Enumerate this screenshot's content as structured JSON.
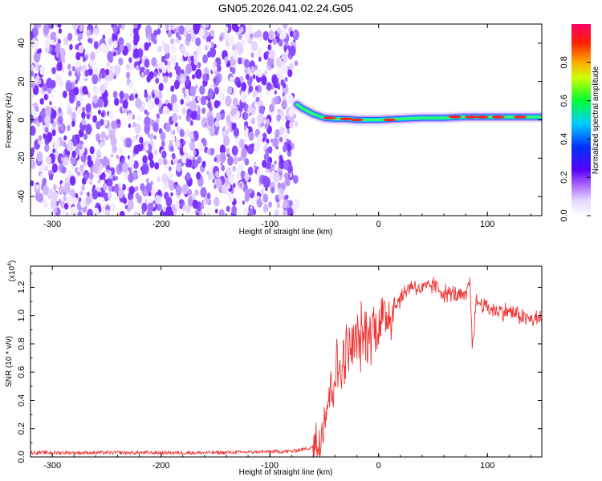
{
  "title": "GN05.2026.041.02.24.G05",
  "chart_data": [
    {
      "type": "heatmap",
      "xlabel": "Height of straight line (km)",
      "ylabel": "Frequency (Hz)",
      "xlim": [
        -320,
        150
      ],
      "ylim": [
        -50,
        50
      ],
      "xticks": [
        -300,
        -200,
        -100,
        0,
        100
      ],
      "yticks": [
        -40,
        -20,
        0,
        20,
        40
      ],
      "noise_region_x": [
        -320,
        -75
      ],
      "signal_trace": {
        "x": [
          -75,
          -70,
          -60,
          -50,
          -40,
          -30,
          -20,
          -10,
          0,
          20,
          40,
          60,
          80,
          100,
          120,
          150
        ],
        "y": [
          8,
          6,
          3,
          1,
          0.5,
          0.5,
          0,
          0,
          0,
          0.5,
          1,
          1,
          1.5,
          1.5,
          1.5,
          1.5
        ]
      },
      "colorbar": {
        "label": "Normalized spectral amplitude",
        "range": [
          0,
          1
        ],
        "ticks": [
          "0.0",
          "0.2",
          "0.4",
          "0.6",
          "0.8"
        ],
        "colors": [
          "#ffffff",
          "#cc99ff",
          "#8800ff",
          "#0000ff",
          "#00ccff",
          "#00ff00",
          "#ffff00",
          "#ff8800",
          "#ff0000",
          "#ff0066"
        ]
      }
    },
    {
      "type": "line",
      "xlabel": "Height of straight line (km)",
      "ylabel": "SNR (10 * v/v)",
      "scale_label": "(x10",
      "scale_exp": "4",
      "scale_close": ")",
      "xlim": [
        -320,
        150
      ],
      "ylim": [
        0,
        1.35
      ],
      "xticks": [
        -300,
        -200,
        -100,
        0,
        100
      ],
      "yticks": [
        "0.0",
        "0.2",
        "0.4",
        "0.6",
        "0.8",
        "1.0",
        "1.2"
      ],
      "series": [
        {
          "color": "#ee3333",
          "x": [
            -320,
            -250,
            -150,
            -80,
            -65,
            -55,
            -50,
            -45,
            -40,
            -35,
            -30,
            -20,
            -10,
            0,
            10,
            20,
            30,
            40,
            50,
            60,
            70,
            80,
            84,
            86,
            90,
            100,
            110,
            120,
            130,
            140,
            150
          ],
          "y": [
            0.03,
            0.03,
            0.03,
            0.04,
            0.06,
            0.1,
            0.3,
            0.45,
            0.6,
            0.62,
            0.72,
            0.82,
            0.88,
            0.95,
            1.02,
            1.12,
            1.22,
            1.18,
            1.22,
            1.16,
            1.15,
            1.12,
            1.25,
            0.8,
            1.1,
            1.06,
            1.03,
            1.03,
            1.0,
            0.97,
            0.98
          ]
        }
      ]
    }
  ]
}
